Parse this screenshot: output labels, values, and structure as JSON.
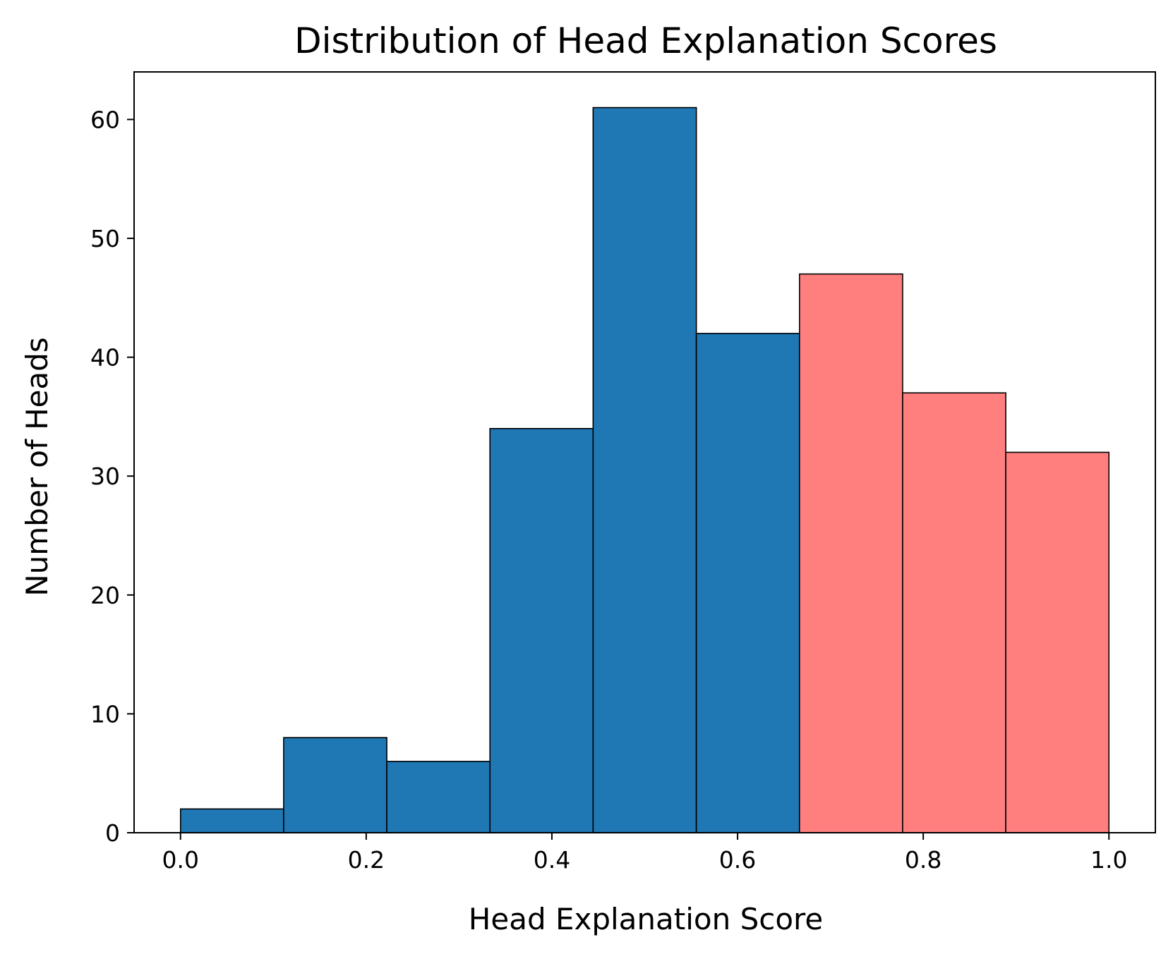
{
  "chart_data": {
    "type": "bar",
    "title": "Distribution of Head Explanation Scores",
    "xlabel": "Head Explanation Score",
    "ylabel": "Number of Heads",
    "xlim": [
      -0.05,
      1.05
    ],
    "ylim": [
      0,
      64
    ],
    "xticks": [
      "0.0",
      "0.2",
      "0.4",
      "0.6",
      "0.8",
      "1.0"
    ],
    "yticks": [
      "0",
      "10",
      "20",
      "30",
      "40",
      "50",
      "60"
    ],
    "grid": false,
    "bins": [
      {
        "x0": 0.0,
        "x1": 0.1111,
        "count": 2,
        "color": "#1f77b4"
      },
      {
        "x0": 0.1111,
        "x1": 0.2222,
        "count": 8,
        "color": "#1f77b4"
      },
      {
        "x0": 0.2222,
        "x1": 0.3333,
        "count": 6,
        "color": "#1f77b4"
      },
      {
        "x0": 0.3333,
        "x1": 0.4444,
        "count": 34,
        "color": "#1f77b4"
      },
      {
        "x0": 0.4444,
        "x1": 0.5556,
        "count": 61,
        "color": "#1f77b4"
      },
      {
        "x0": 0.5556,
        "x1": 0.6667,
        "count": 42,
        "color": "#1f77b4"
      },
      {
        "x0": 0.6667,
        "x1": 0.7778,
        "count": 47,
        "color": "#ff7f7f"
      },
      {
        "x0": 0.7778,
        "x1": 0.8889,
        "count": 37,
        "color": "#ff7f7f"
      },
      {
        "x0": 0.8889,
        "x1": 1.0,
        "count": 32,
        "color": "#ff7f7f"
      }
    ]
  }
}
